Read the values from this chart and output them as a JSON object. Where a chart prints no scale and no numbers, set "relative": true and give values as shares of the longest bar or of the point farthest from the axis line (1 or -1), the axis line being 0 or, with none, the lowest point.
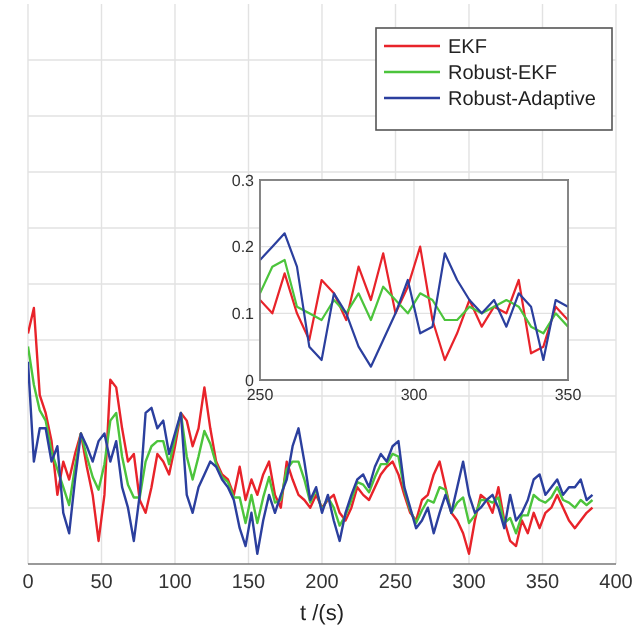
{
  "chart_data": [
    {
      "type": "line",
      "xlabel": "t /(s)",
      "relative": true,
      "xlim": [
        0,
        400
      ],
      "xticks": [
        0,
        50,
        100,
        150,
        200,
        250,
        300,
        350,
        400
      ],
      "grid": true,
      "legend": "top right",
      "x": [
        0,
        4,
        8,
        12,
        16,
        20,
        24,
        28,
        32,
        36,
        40,
        44,
        48,
        52,
        56,
        60,
        64,
        68,
        72,
        76,
        80,
        84,
        88,
        92,
        96,
        100,
        104,
        108,
        112,
        116,
        120,
        124,
        128,
        132,
        136,
        140,
        144,
        148,
        152,
        156,
        160,
        164,
        168,
        172,
        176,
        180,
        184,
        188,
        192,
        196,
        200,
        204,
        208,
        212,
        216,
        220,
        224,
        228,
        232,
        236,
        240,
        244,
        248,
        252,
        256,
        260,
        264,
        268,
        272,
        276,
        280,
        284,
        288,
        292,
        296,
        300,
        304,
        308,
        312,
        316,
        320,
        324,
        328,
        332,
        336,
        340,
        344,
        348,
        352,
        356,
        360,
        364,
        368,
        372,
        376,
        380,
        384
      ],
      "series": [
        {
          "name": "EKF",
          "color": "#e8232a",
          "values": [
            0.9,
            1.0,
            0.66,
            0.59,
            0.48,
            0.27,
            0.4,
            0.33,
            0.43,
            0.51,
            0.38,
            0.27,
            0.09,
            0.27,
            0.72,
            0.69,
            0.53,
            0.4,
            0.43,
            0.25,
            0.2,
            0.3,
            0.43,
            0.4,
            0.35,
            0.46,
            0.59,
            0.56,
            0.46,
            0.53,
            0.69,
            0.53,
            0.4,
            0.35,
            0.33,
            0.27,
            0.38,
            0.25,
            0.33,
            0.27,
            0.35,
            0.4,
            0.27,
            0.22,
            0.4,
            0.33,
            0.27,
            0.25,
            0.22,
            0.27,
            0.22,
            0.25,
            0.27,
            0.2,
            0.17,
            0.22,
            0.3,
            0.27,
            0.25,
            0.3,
            0.35,
            0.38,
            0.4,
            0.35,
            0.27,
            0.2,
            0.17,
            0.25,
            0.27,
            0.35,
            0.4,
            0.3,
            0.2,
            0.17,
            0.12,
            0.04,
            0.17,
            0.27,
            0.25,
            0.2,
            0.3,
            0.17,
            0.09,
            0.07,
            0.17,
            0.12,
            0.2,
            0.14,
            0.2,
            0.22,
            0.27,
            0.22,
            0.17,
            0.14,
            0.17,
            0.2,
            0.22
          ]
        },
        {
          "name": "Robust-EKF",
          "color": "#4cc43c",
          "values": [
            0.85,
            0.7,
            0.6,
            0.56,
            0.44,
            0.37,
            0.3,
            0.23,
            0.38,
            0.51,
            0.42,
            0.34,
            0.29,
            0.39,
            0.56,
            0.59,
            0.42,
            0.31,
            0.26,
            0.26,
            0.4,
            0.46,
            0.48,
            0.48,
            0.39,
            0.49,
            0.59,
            0.42,
            0.33,
            0.42,
            0.52,
            0.47,
            0.39,
            0.34,
            0.32,
            0.26,
            0.26,
            0.16,
            0.27,
            0.16,
            0.26,
            0.34,
            0.24,
            0.25,
            0.37,
            0.4,
            0.4,
            0.33,
            0.24,
            0.29,
            0.21,
            0.26,
            0.22,
            0.15,
            0.19,
            0.25,
            0.32,
            0.31,
            0.28,
            0.34,
            0.39,
            0.39,
            0.43,
            0.42,
            0.29,
            0.21,
            0.16,
            0.21,
            0.25,
            0.24,
            0.3,
            0.29,
            0.2,
            0.24,
            0.26,
            0.16,
            0.19,
            0.25,
            0.25,
            0.24,
            0.26,
            0.16,
            0.18,
            0.12,
            0.19,
            0.19,
            0.27,
            0.25,
            0.24,
            0.26,
            0.3,
            0.25,
            0.24,
            0.22,
            0.25,
            0.23,
            0.25
          ]
        },
        {
          "name": "Robust-Adaptive",
          "color": "#2b3f9e",
          "values": [
            0.79,
            0.4,
            0.53,
            0.53,
            0.4,
            0.46,
            0.2,
            0.12,
            0.33,
            0.51,
            0.46,
            0.4,
            0.48,
            0.51,
            0.4,
            0.48,
            0.3,
            0.22,
            0.09,
            0.27,
            0.59,
            0.61,
            0.53,
            0.56,
            0.43,
            0.51,
            0.59,
            0.27,
            0.2,
            0.3,
            0.35,
            0.4,
            0.38,
            0.33,
            0.3,
            0.25,
            0.14,
            0.07,
            0.2,
            0.04,
            0.17,
            0.27,
            0.2,
            0.27,
            0.33,
            0.46,
            0.53,
            0.4,
            0.25,
            0.3,
            0.2,
            0.27,
            0.17,
            0.09,
            0.2,
            0.27,
            0.33,
            0.35,
            0.3,
            0.38,
            0.43,
            0.4,
            0.46,
            0.48,
            0.3,
            0.22,
            0.14,
            0.17,
            0.22,
            0.12,
            0.2,
            0.27,
            0.2,
            0.3,
            0.4,
            0.27,
            0.2,
            0.22,
            0.25,
            0.27,
            0.22,
            0.14,
            0.27,
            0.17,
            0.2,
            0.25,
            0.33,
            0.35,
            0.27,
            0.3,
            0.33,
            0.27,
            0.3,
            0.3,
            0.33,
            0.25,
            0.27
          ]
        }
      ]
    },
    {
      "type": "line",
      "xlim": [
        250,
        350
      ],
      "ylim": [
        0,
        0.3
      ],
      "xticks": [
        250,
        300,
        350
      ],
      "yticks": [
        0,
        0.1,
        0.2,
        0.3
      ],
      "grid": true,
      "x": [
        250,
        254,
        258,
        262,
        266,
        270,
        274,
        278,
        282,
        286,
        290,
        294,
        298,
        302,
        306,
        310,
        314,
        318,
        322,
        326,
        330,
        334,
        338,
        342,
        346,
        350
      ],
      "series": [
        {
          "color": "#e8232a",
          "values": [
            0.12,
            0.1,
            0.16,
            0.1,
            0.06,
            0.15,
            0.13,
            0.09,
            0.17,
            0.12,
            0.19,
            0.1,
            0.14,
            0.2,
            0.09,
            0.03,
            0.07,
            0.12,
            0.08,
            0.11,
            0.1,
            0.15,
            0.04,
            0.05,
            0.11,
            0.09
          ]
        },
        {
          "color": "#4cc43c",
          "values": [
            0.13,
            0.17,
            0.18,
            0.11,
            0.1,
            0.09,
            0.12,
            0.1,
            0.13,
            0.09,
            0.14,
            0.12,
            0.1,
            0.13,
            0.12,
            0.09,
            0.09,
            0.11,
            0.1,
            0.11,
            0.12,
            0.11,
            0.08,
            0.07,
            0.1,
            0.08
          ]
        },
        {
          "color": "#2b3f9e",
          "values": [
            0.18,
            0.2,
            0.22,
            0.17,
            0.05,
            0.03,
            0.13,
            0.1,
            0.05,
            0.02,
            0.06,
            0.1,
            0.15,
            0.07,
            0.08,
            0.19,
            0.15,
            0.12,
            0.1,
            0.12,
            0.08,
            0.13,
            0.11,
            0.03,
            0.12,
            0.11
          ]
        }
      ]
    }
  ]
}
